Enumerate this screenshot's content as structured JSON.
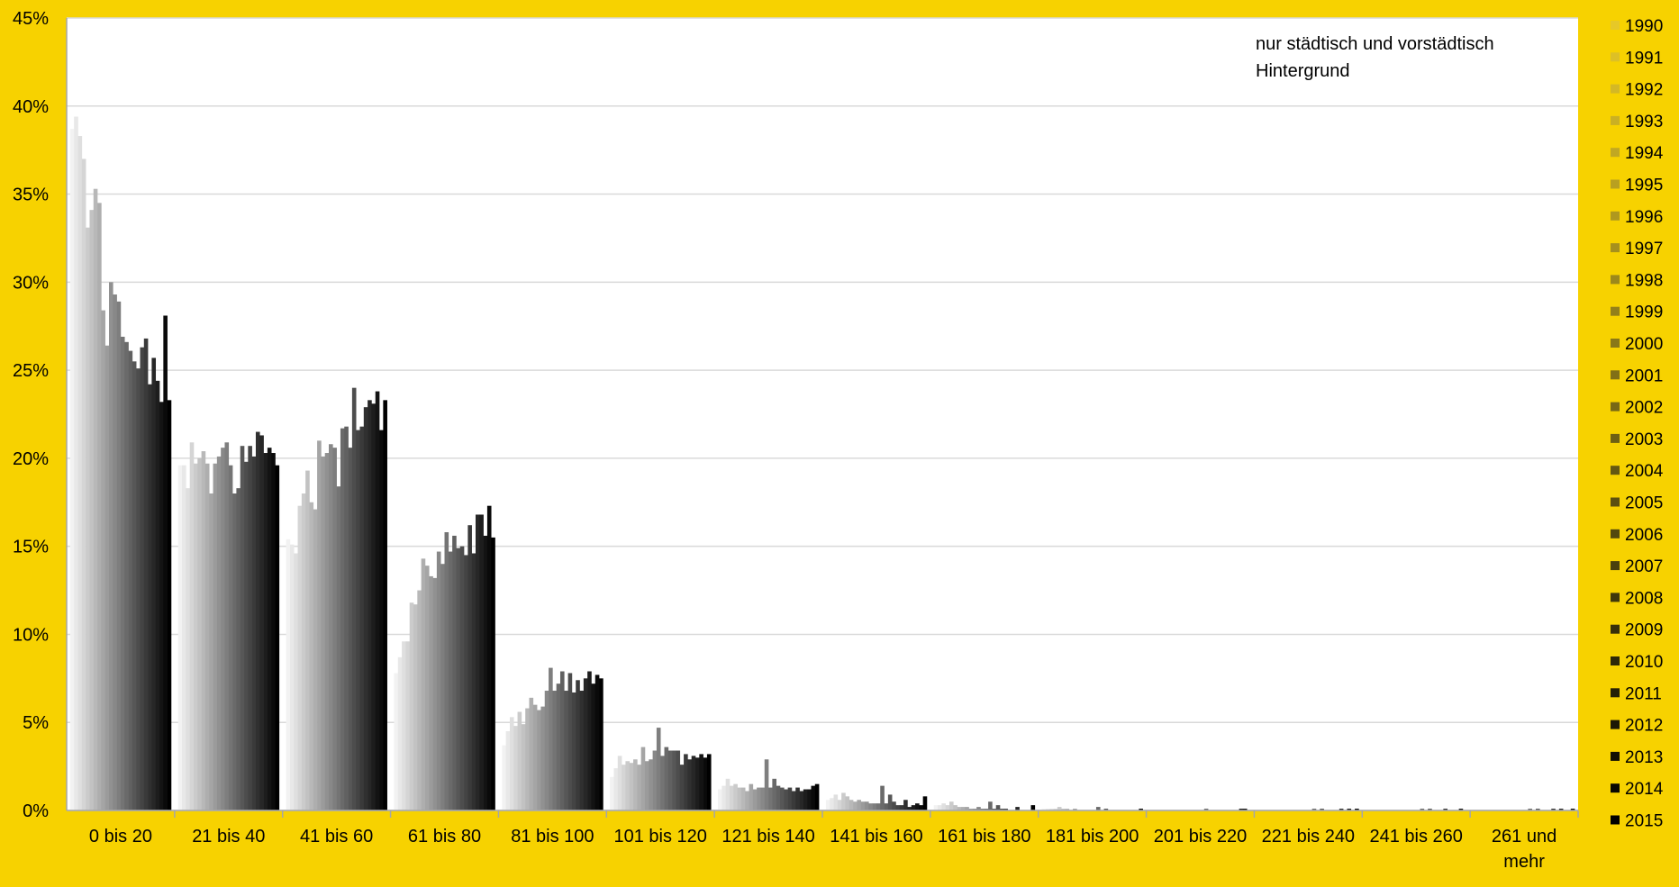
{
  "chart_data": {
    "type": "bar",
    "title": "",
    "xlabel": "",
    "ylabel": "",
    "annotation": [
      "nur städtisch und vorstädtisch",
      "Hintergrund"
    ],
    "ylim": [
      0,
      45
    ],
    "yticks": [
      "0%",
      "5%",
      "10%",
      "15%",
      "20%",
      "25%",
      "30%",
      "35%",
      "40%",
      "45%"
    ],
    "grid": true,
    "legend_position": "right",
    "background_color": "#F7D200",
    "plot_background_color": "#FFFFFF",
    "categories": [
      [
        "0 bis 20"
      ],
      [
        "21 bis 40"
      ],
      [
        "41 bis 60"
      ],
      [
        "61 bis 80"
      ],
      [
        "81 bis 100"
      ],
      [
        "101 bis 120"
      ],
      [
        "121 bis 140"
      ],
      [
        "141 bis 160"
      ],
      [
        "161 bis 180"
      ],
      [
        "181 bis 200"
      ],
      [
        "201 bis 220"
      ],
      [
        "221 bis 240"
      ],
      [
        "241 bis 260"
      ],
      [
        "261 und",
        "mehr"
      ]
    ],
    "series_names": [
      "1990",
      "1991",
      "1992",
      "1993",
      "1994",
      "1995",
      "1996",
      "1997",
      "1998",
      "1999",
      "2000",
      "2001",
      "2002",
      "2003",
      "2004",
      "2005",
      "2006",
      "2007",
      "2008",
      "2009",
      "2010",
      "2011",
      "2012",
      "2013",
      "2014",
      "2015"
    ],
    "values_by_category": [
      [
        38.7,
        39.4,
        38.3,
        37.0,
        33.1,
        34.1,
        35.3,
        34.5,
        28.4,
        26.4,
        30.0,
        29.3,
        28.9,
        26.9,
        26.6,
        26.1,
        25.5,
        25.1,
        26.3,
        26.8,
        24.2,
        25.7,
        24.4,
        23.2,
        28.1,
        23.3
      ],
      [
        19.6,
        19.6,
        18.3,
        20.9,
        19.7,
        20.0,
        20.4,
        19.7,
        18.0,
        19.7,
        20.1,
        20.6,
        20.9,
        19.6,
        18.0,
        18.3,
        20.7,
        19.8,
        20.7,
        20.1,
        21.5,
        21.3,
        20.3,
        20.6,
        20.3,
        19.6
      ],
      [
        15.4,
        15.1,
        14.6,
        17.3,
        18.0,
        19.3,
        17.5,
        17.1,
        21.0,
        20.1,
        20.3,
        20.8,
        20.6,
        18.4,
        21.7,
        21.8,
        20.6,
        24.0,
        21.6,
        21.8,
        22.9,
        23.3,
        23.1,
        23.8,
        21.6,
        23.3
      ],
      [
        7.8,
        8.7,
        9.6,
        9.6,
        11.8,
        11.7,
        12.5,
        14.3,
        13.9,
        13.3,
        13.2,
        14.7,
        14.0,
        15.8,
        14.7,
        15.6,
        14.9,
        15.0,
        14.5,
        16.2,
        14.6,
        16.8,
        16.8,
        15.6,
        17.3,
        15.5
      ],
      [
        3.7,
        4.5,
        5.3,
        4.8,
        5.6,
        4.9,
        5.8,
        6.4,
        6.0,
        5.7,
        5.9,
        6.8,
        8.1,
        6.8,
        7.2,
        7.9,
        6.8,
        7.8,
        6.7,
        7.4,
        6.8,
        7.5,
        7.9,
        7.2,
        7.7,
        7.5
      ],
      [
        1.9,
        2.4,
        3.1,
        2.6,
        2.8,
        2.7,
        2.9,
        2.6,
        3.6,
        2.8,
        2.9,
        3.4,
        4.7,
        3.1,
        3.6,
        3.4,
        3.4,
        3.4,
        2.6,
        3.2,
        2.9,
        3.1,
        3.0,
        3.2,
        3.0,
        3.2
      ],
      [
        1.2,
        1.4,
        1.8,
        1.4,
        1.5,
        1.3,
        1.3,
        1.1,
        1.5,
        1.2,
        1.3,
        1.3,
        2.9,
        1.3,
        1.8,
        1.4,
        1.3,
        1.2,
        1.3,
        1.1,
        1.3,
        1.1,
        1.2,
        1.2,
        1.4,
        1.5
      ],
      [
        0.6,
        0.7,
        0.9,
        0.6,
        1.0,
        0.8,
        0.6,
        0.5,
        0.6,
        0.5,
        0.5,
        0.4,
        0.4,
        0.4,
        1.4,
        0.4,
        0.9,
        0.5,
        0.3,
        0.3,
        0.6,
        0.2,
        0.3,
        0.4,
        0.3,
        0.8
      ],
      [
        0.3,
        0.3,
        0.4,
        0.3,
        0.5,
        0.3,
        0.2,
        0.2,
        0.2,
        0.1,
        0.1,
        0.2,
        0.1,
        0.1,
        0.5,
        0.1,
        0.3,
        0.1,
        0.1,
        0.0,
        0.0,
        0.2,
        0.0,
        0.0,
        0.0,
        0.3
      ],
      [
        0.1,
        0.1,
        0.1,
        0.1,
        0.2,
        0.1,
        0.1,
        0.0,
        0.1,
        0.0,
        0.0,
        0.0,
        0.0,
        0.0,
        0.2,
        0.0,
        0.1,
        0.0,
        0.0,
        0.0,
        0.0,
        0.0,
        0.0,
        0.0,
        0.0,
        0.1
      ],
      [
        0.0,
        0.0,
        0.0,
        0.0,
        0.0,
        0.0,
        0.0,
        0.0,
        0.0,
        0.0,
        0.0,
        0.0,
        0.0,
        0.0,
        0.1,
        0.0,
        0.0,
        0.0,
        0.0,
        0.0,
        0.0,
        0.0,
        0.0,
        0.1,
        0.1,
        0.0
      ],
      [
        0.0,
        0.0,
        0.0,
        0.0,
        0.0,
        0.0,
        0.0,
        0.0,
        0.0,
        0.0,
        0.0,
        0.0,
        0.0,
        0.0,
        0.1,
        0.0,
        0.1,
        0.0,
        0.0,
        0.0,
        0.0,
        0.1,
        0.0,
        0.1,
        0.0,
        0.1
      ],
      [
        0.0,
        0.0,
        0.0,
        0.0,
        0.0,
        0.0,
        0.0,
        0.0,
        0.0,
        0.0,
        0.0,
        0.0,
        0.0,
        0.0,
        0.1,
        0.0,
        0.1,
        0.0,
        0.0,
        0.0,
        0.1,
        0.0,
        0.0,
        0.0,
        0.1,
        0.0
      ],
      [
        0.0,
        0.0,
        0.0,
        0.0,
        0.0,
        0.0,
        0.0,
        0.0,
        0.0,
        0.0,
        0.0,
        0.0,
        0.0,
        0.0,
        0.1,
        0.0,
        0.1,
        0.0,
        0.0,
        0.0,
        0.1,
        0.0,
        0.1,
        0.0,
        0.0,
        0.1
      ]
    ]
  }
}
